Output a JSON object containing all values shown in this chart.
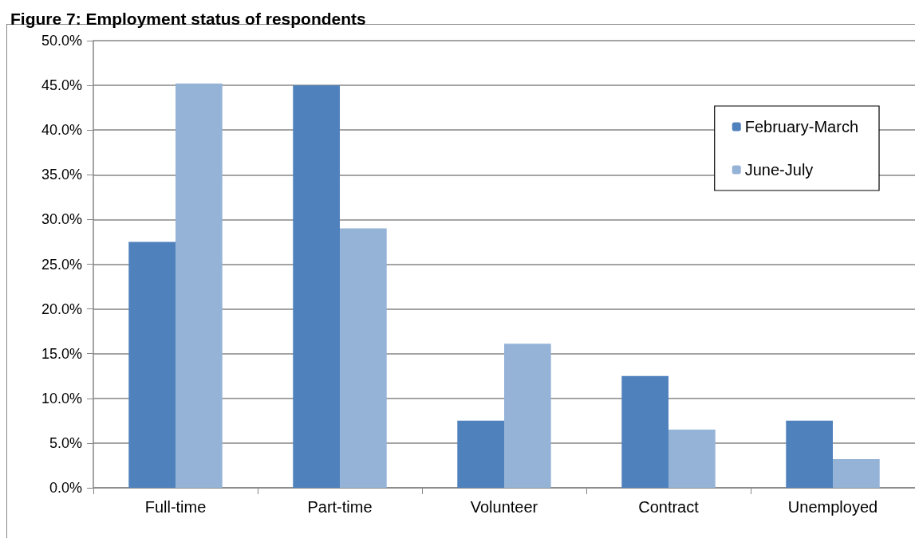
{
  "chart_data": {
    "type": "bar",
    "title": "Figure 7: Employment status of respondents",
    "categories": [
      "Full-time",
      "Part-time",
      "Volunteer",
      "Contract",
      "Unemployed"
    ],
    "series": [
      {
        "name": "February-March",
        "color": "#4f81bd",
        "values": [
          27.5,
          45.0,
          7.5,
          12.5,
          7.5
        ]
      },
      {
        "name": "June-July",
        "color": "#95b3d7",
        "values": [
          45.2,
          29.0,
          16.1,
          6.5,
          3.2
        ]
      }
    ],
    "ylim": [
      0,
      50
    ],
    "yticks": [
      {
        "value": 0,
        "label": "0.0%"
      },
      {
        "value": 5,
        "label": "5.0%"
      },
      {
        "value": 10,
        "label": "10.0%"
      },
      {
        "value": 15,
        "label": "15.0%"
      },
      {
        "value": 20,
        "label": "20.0%"
      },
      {
        "value": 25,
        "label": "25.0%"
      },
      {
        "value": 30,
        "label": "30.0%"
      },
      {
        "value": 35,
        "label": "35.0%"
      },
      {
        "value": 40,
        "label": "40.0%"
      },
      {
        "value": 45,
        "label": "45.0%"
      },
      {
        "value": 50,
        "label": "50.0%"
      }
    ],
    "grid": "y",
    "legend": "top right"
  }
}
